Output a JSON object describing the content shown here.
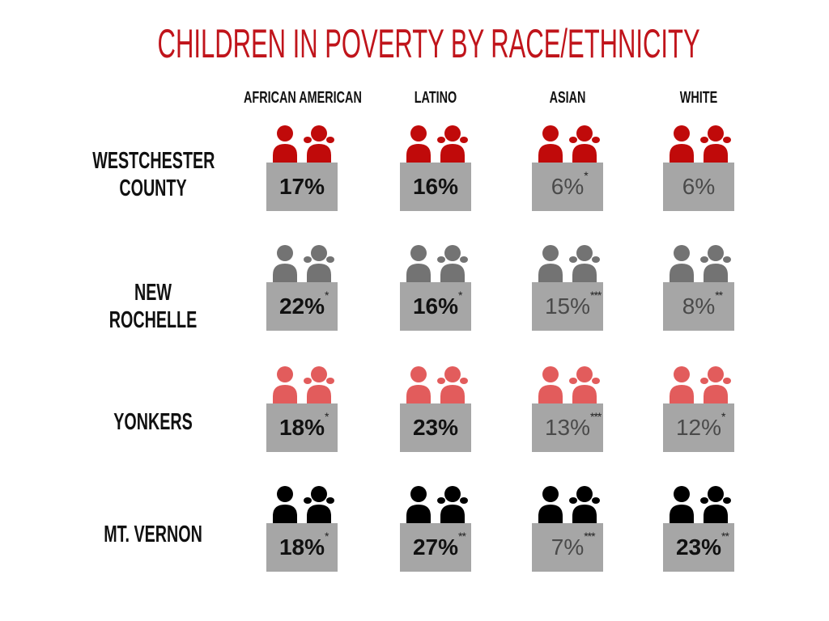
{
  "title": "CHILDREN IN POVERTY BY RACE/ETHNICITY",
  "colors": {
    "title": "#c0141b",
    "box": "#a6a6a6",
    "row_icon_colors": [
      "#c00a0a",
      "#737373",
      "#e25c5c",
      "#000000"
    ]
  },
  "chart_data": {
    "type": "table",
    "title": "CHILDREN IN POVERTY BY RACE/ETHNICITY",
    "columns": [
      "AFRICAN AMERICAN",
      "LATINO",
      "ASIAN",
      "WHITE"
    ],
    "rows": [
      {
        "label": "WESTCHESTER\nCOUNTY",
        "icon_color": "#c00a0a",
        "cells": [
          {
            "value": "17%",
            "note": "",
            "bold": true
          },
          {
            "value": "16%",
            "note": "",
            "bold": true
          },
          {
            "value": "6%",
            "note": "*",
            "bold": false
          },
          {
            "value": "6%",
            "note": "",
            "bold": false
          }
        ]
      },
      {
        "label": "NEW ROCHELLE",
        "icon_color": "#737373",
        "cells": [
          {
            "value": "22%",
            "note": "*",
            "bold": true
          },
          {
            "value": "16%",
            "note": "*",
            "bold": true
          },
          {
            "value": "15%",
            "note": "***",
            "bold": false
          },
          {
            "value": "8%",
            "note": "**",
            "bold": false
          }
        ]
      },
      {
        "label": "YONKERS",
        "icon_color": "#e25c5c",
        "cells": [
          {
            "value": "18%",
            "note": "*",
            "bold": true
          },
          {
            "value": "23%",
            "note": "",
            "bold": true
          },
          {
            "value": "13%",
            "note": "***",
            "bold": false
          },
          {
            "value": "12%",
            "note": "*",
            "bold": false
          }
        ]
      },
      {
        "label": "MT. VERNON",
        "icon_color": "#000000",
        "cells": [
          {
            "value": "18%",
            "note": "*",
            "bold": true
          },
          {
            "value": "27%",
            "note": "**",
            "bold": true
          },
          {
            "value": "7%",
            "note": "***",
            "bold": false
          },
          {
            "value": "23%",
            "note": "**",
            "bold": true
          }
        ]
      }
    ]
  }
}
